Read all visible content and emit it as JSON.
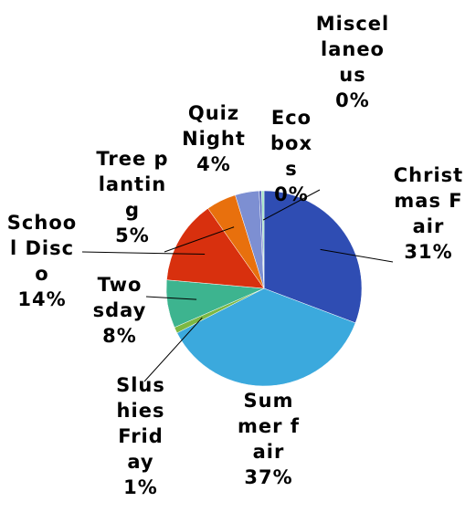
{
  "chart_data": {
    "type": "pie",
    "categories": [
      "Christmas Fair",
      "Summer fair",
      "Slushies Friday",
      "Twosday",
      "School Disco",
      "Tree planting",
      "Quiz Night",
      "Eco boxs",
      "Miscellaneous"
    ],
    "values": [
      31,
      37,
      1,
      8,
      14,
      5,
      4,
      0.4,
      0.4
    ],
    "value_labels": [
      "31%",
      "37%",
      "1%",
      "8%",
      "14%",
      "5%",
      "4%",
      "0%",
      "0%"
    ],
    "colors": [
      "#2f4db3",
      "#3ba9dd",
      "#7cb843",
      "#3db48f",
      "#d8300e",
      "#e8700d",
      "#7d8fd2",
      "#5667bd",
      "#9fe2c4"
    ]
  }
}
